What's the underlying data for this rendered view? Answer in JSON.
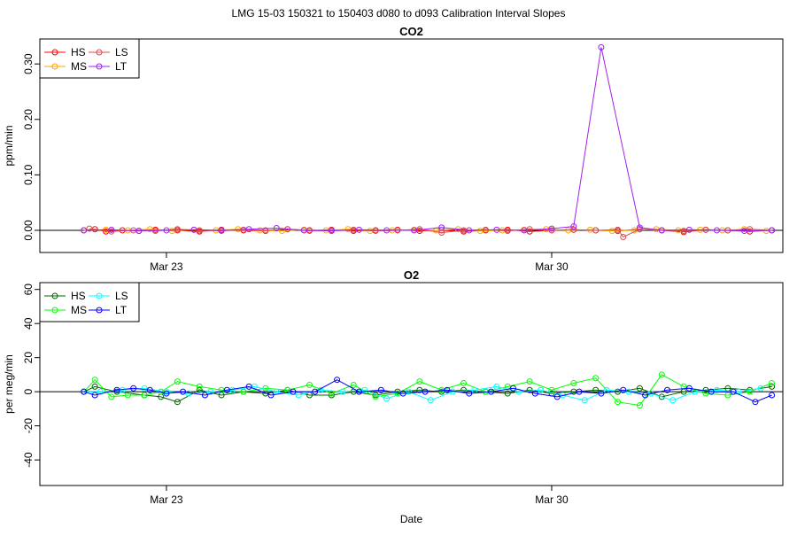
{
  "page": {
    "title": "LMG  15-03    150321 to 150403    d080 to d093   Calibration Interval Slopes"
  },
  "chart_data": [
    {
      "type": "line",
      "title": "CO2",
      "xlabel": "",
      "ylabel": "ppm/min",
      "x_ticks": [
        "Mar 23",
        "Mar 30"
      ],
      "x_tick_pos": [
        4.0,
        11.0
      ],
      "xlim": [
        1.7,
        15.2
      ],
      "ylim": [
        -0.04,
        0.345
      ],
      "y_ticks": [
        0.0,
        0.1,
        0.2,
        0.3
      ],
      "y_tick_labels": [
        "0.00",
        "0.10",
        "0.20",
        "0.30"
      ],
      "hline": 0,
      "legend": {
        "placement": "top-left",
        "entries": [
          "HS",
          "MS",
          "LS",
          "LT"
        ]
      },
      "series": [
        {
          "name": "HS",
          "color": "#ff0000",
          "x": [
            2.5,
            2.7,
            2.9,
            3.2,
            3.5,
            3.8,
            4.2,
            4.6,
            5.0,
            5.4,
            5.8,
            6.2,
            6.6,
            7.0,
            7.4,
            7.8,
            8.2,
            8.6,
            9.0,
            9.4,
            9.8,
            10.2,
            10.6,
            11.0,
            11.4,
            11.8,
            12.2,
            12.6,
            13.0,
            13.4,
            13.8,
            14.2,
            14.6,
            15.0
          ],
          "y": [
            0,
            0.002,
            -0.002,
            0,
            -0.001,
            0.001,
            0,
            -0.002,
            0.001,
            0,
            -0.001,
            0.002,
            0,
            0.001,
            -0.001,
            0,
            0.001,
            -0.001,
            0,
            -0.002,
            0,
            0.001,
            -0.002,
            0,
            0.001,
            0,
            -0.001,
            0.002,
            0,
            -0.003,
            0.001,
            0,
            -0.002,
            0
          ]
        },
        {
          "name": "MS",
          "color": "#ffa500",
          "x": [
            2.5,
            2.9,
            3.3,
            3.7,
            4.1,
            4.5,
            4.9,
            5.3,
            5.7,
            6.1,
            6.5,
            6.9,
            7.3,
            7.7,
            8.1,
            8.5,
            8.9,
            9.3,
            9.7,
            10.1,
            10.5,
            10.9,
            11.3,
            11.7,
            12.1,
            12.5,
            12.9,
            13.3,
            13.7,
            14.1,
            14.5,
            14.9
          ],
          "y": [
            0,
            0.001,
            0,
            0.002,
            -0.001,
            0.001,
            0,
            0.002,
            0,
            -0.001,
            0.001,
            0,
            0.002,
            -0.001,
            0,
            0.001,
            0,
            0.002,
            -0.001,
            0,
            0.001,
            0.002,
            0,
            0.001,
            -0.001,
            0,
            0.002,
            0,
            0.001,
            0,
            0.002,
            -0.001
          ]
        },
        {
          "name": "LS",
          "color": "#d45050",
          "x": [
            2.6,
            3.0,
            3.4,
            3.8,
            4.2,
            4.6,
            5.0,
            5.4,
            5.8,
            6.2,
            6.6,
            7.0,
            7.4,
            7.8,
            8.2,
            8.6,
            9.0,
            9.4,
            9.8,
            10.2,
            10.6,
            11.0,
            11.4,
            11.8,
            12.2,
            12.3,
            12.6,
            13.0,
            13.4,
            13.8,
            14.2,
            14.6,
            15.0
          ],
          "y": [
            0.003,
            -0.002,
            0,
            -0.001,
            0.002,
            0,
            -0.001,
            0.001,
            0,
            0.002,
            -0.001,
            0,
            0.001,
            -0.001,
            0,
            0.002,
            -0.004,
            0,
            0.001,
            -0.001,
            0.002,
            0,
            0.001,
            0,
            0.001,
            -0.012,
            0.002,
            0,
            -0.001,
            0.001,
            0,
            0.002,
            0
          ]
        },
        {
          "name": "LT",
          "color": "#a020f0",
          "x": [
            2.5,
            3.0,
            3.5,
            4.0,
            4.5,
            5.0,
            5.5,
            6.0,
            6.5,
            7.0,
            7.5,
            8.0,
            8.5,
            9.0,
            9.5,
            10.0,
            10.5,
            11.0,
            11.4,
            11.9,
            12.6,
            13.0,
            13.5,
            14.0,
            14.5,
            15.0
          ],
          "y": [
            0,
            0.001,
            -0.001,
            0,
            0.001,
            0,
            0.002,
            0.004,
            0,
            -0.001,
            0.001,
            0,
            0,
            0.005,
            0,
            0.001,
            0,
            0.003,
            0.007,
            0.33,
            0.005,
            0,
            0.001,
            0,
            -0.001,
            0
          ]
        }
      ]
    },
    {
      "type": "line",
      "title": "O2",
      "xlabel": "Date",
      "ylabel": "per meg/min",
      "x_ticks": [
        "Mar 23",
        "Mar 30"
      ],
      "x_tick_pos": [
        4.0,
        11.0
      ],
      "xlim": [
        1.7,
        15.2
      ],
      "ylim": [
        -55,
        64
      ],
      "y_ticks": [
        -40,
        -20,
        0,
        20,
        40,
        60
      ],
      "y_tick_labels": [
        "-40",
        "-20",
        "0",
        "20",
        "40",
        "60"
      ],
      "hline": 0,
      "legend": {
        "placement": "top-left",
        "entries": [
          "HS",
          "MS",
          "LS",
          "LT"
        ]
      },
      "series": [
        {
          "name": "HS",
          "color": "#006400",
          "x": [
            2.5,
            2.7,
            3.1,
            3.6,
            3.9,
            4.2,
            4.6,
            5.0,
            5.4,
            5.8,
            6.2,
            6.6,
            7.0,
            7.4,
            7.8,
            8.2,
            8.6,
            9.0,
            9.4,
            9.8,
            10.2,
            10.6,
            11.0,
            11.4,
            11.8,
            12.2,
            12.6,
            13.0,
            13.4,
            13.8,
            14.2,
            14.6,
            15.0
          ],
          "y": [
            0,
            3,
            0,
            -2,
            -3,
            -6,
            1,
            -2,
            0,
            -1,
            1,
            -2,
            -2,
            0,
            -2,
            0,
            1,
            0,
            1,
            0,
            -1,
            1,
            -1,
            0,
            1,
            0,
            2,
            -3,
            0,
            1,
            2,
            1,
            3
          ]
        },
        {
          "name": "MS",
          "color": "#00ff00",
          "x": [
            2.5,
            2.7,
            3.0,
            3.3,
            3.6,
            3.9,
            4.2,
            4.6,
            5.0,
            5.4,
            5.8,
            6.2,
            6.6,
            7.0,
            7.4,
            7.8,
            8.2,
            8.6,
            9.0,
            9.4,
            9.8,
            10.2,
            10.6,
            11.0,
            11.4,
            11.8,
            12.2,
            12.6,
            13.0,
            13.4,
            13.8,
            14.2,
            14.6,
            15.0
          ],
          "y": [
            0,
            7,
            -3,
            -2,
            -2,
            0,
            6,
            3,
            1,
            0,
            2,
            1,
            4,
            -1,
            4,
            -3,
            -1,
            6,
            1,
            5,
            0,
            3,
            6,
            1,
            5,
            8,
            -6,
            -8,
            10,
            3,
            -1,
            -2,
            0,
            5
          ]
        },
        {
          "name": "LS",
          "color": "#00ffff",
          "x": [
            2.5,
            2.8,
            3.2,
            3.6,
            4.0,
            4.4,
            4.8,
            5.2,
            5.6,
            6.0,
            6.4,
            6.8,
            7.2,
            7.6,
            8.0,
            8.4,
            8.8,
            9.2,
            9.6,
            10.0,
            10.4,
            10.8,
            11.2,
            11.6,
            12.0,
            12.4,
            12.8,
            13.2,
            13.6,
            14.0,
            14.4,
            14.8
          ],
          "y": [
            0,
            0,
            1,
            2,
            0,
            -1,
            0,
            1,
            3,
            0,
            -2,
            1,
            0,
            1,
            -4,
            0,
            -5,
            0,
            1,
            3,
            0,
            1,
            -2,
            -5,
            1,
            0,
            -1,
            -5,
            0,
            1,
            0,
            2
          ]
        },
        {
          "name": "LT",
          "color": "#0000ff",
          "x": [
            2.5,
            2.7,
            3.1,
            3.4,
            3.7,
            4.0,
            4.3,
            4.7,
            5.1,
            5.5,
            5.9,
            6.3,
            6.7,
            7.1,
            7.5,
            7.9,
            8.3,
            8.7,
            9.1,
            9.5,
            9.9,
            10.3,
            10.7,
            11.1,
            11.5,
            11.9,
            12.3,
            12.7,
            13.1,
            13.5,
            13.9,
            14.3,
            14.7,
            15.0
          ],
          "y": [
            0,
            -2,
            1,
            2,
            1,
            -1,
            0,
            -2,
            1,
            3,
            -2,
            0,
            0,
            7,
            0,
            1,
            -1,
            0,
            1,
            -1,
            0,
            2,
            -1,
            -3,
            0,
            -1,
            1,
            -2,
            1,
            2,
            0,
            0,
            -6,
            -2
          ]
        }
      ]
    }
  ]
}
